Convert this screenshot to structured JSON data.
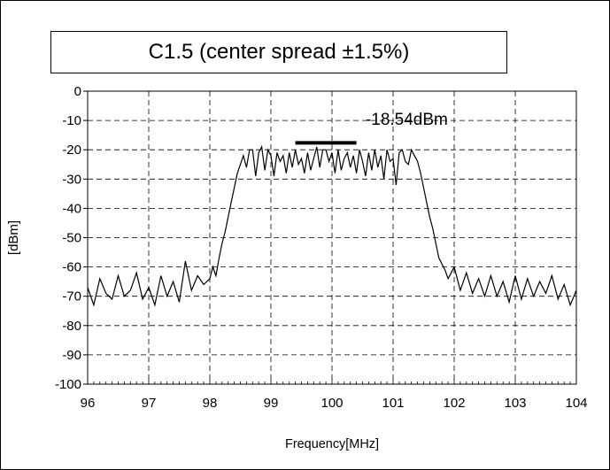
{
  "chart_data": {
    "type": "line",
    "title": "C1.5 (center spread ±1.5%)",
    "xlabel": "Frequency[MHz]",
    "ylabel": "[dBm]",
    "xlim": [
      96,
      104
    ],
    "ylim": [
      -100,
      0
    ],
    "xticks": [
      96,
      97,
      98,
      99,
      100,
      101,
      102,
      103,
      104
    ],
    "yticks": [
      0,
      -10,
      -20,
      -30,
      -40,
      -50,
      -60,
      -70,
      -80,
      -90,
      -100
    ],
    "grid": true,
    "annotation": {
      "text": "-18.54dBm",
      "marker_x_range": [
        99.4,
        100.4
      ],
      "marker_y": -18.54
    },
    "series": [
      {
        "x": [
          96.0,
          96.1,
          96.2,
          96.3,
          96.4,
          96.5,
          96.6,
          96.7,
          96.8,
          96.9,
          97.0,
          97.1,
          97.2,
          97.3,
          97.4,
          97.5,
          97.6,
          97.7,
          97.8,
          97.9,
          98.0,
          98.05,
          98.1,
          98.15,
          98.2,
          98.25,
          98.3,
          98.35,
          98.4,
          98.45,
          98.5,
          98.55,
          98.6,
          98.65,
          98.7,
          98.75,
          98.8,
          98.85,
          98.9,
          98.95,
          99.0,
          99.05,
          99.1,
          99.15,
          99.2,
          99.25,
          99.3,
          99.35,
          99.4,
          99.45,
          99.5,
          99.55,
          99.6,
          99.65,
          99.7,
          99.75,
          99.8,
          99.85,
          99.9,
          99.95,
          100.0,
          100.05,
          100.1,
          100.15,
          100.2,
          100.25,
          100.3,
          100.35,
          100.4,
          100.45,
          100.5,
          100.55,
          100.6,
          100.65,
          100.7,
          100.75,
          100.8,
          100.85,
          100.9,
          100.95,
          101.0,
          101.05,
          101.1,
          101.15,
          101.2,
          101.25,
          101.3,
          101.35,
          101.4,
          101.45,
          101.5,
          101.55,
          101.6,
          101.65,
          101.7,
          101.75,
          101.8,
          101.85,
          101.9,
          101.95,
          102.0,
          102.1,
          102.2,
          102.3,
          102.4,
          102.5,
          102.6,
          102.7,
          102.8,
          102.9,
          103.0,
          103.1,
          103.2,
          103.3,
          103.4,
          103.5,
          103.6,
          103.7,
          103.8,
          103.9,
          104.0
        ],
        "y": [
          -67,
          -73,
          -64,
          -69,
          -71,
          -63,
          -70,
          -68,
          -62,
          -71,
          -67,
          -73,
          -63,
          -70,
          -65,
          -72,
          -58,
          -68,
          -63,
          -66,
          -64,
          -60,
          -63,
          -57,
          -52,
          -48,
          -43,
          -38,
          -33,
          -28,
          -25,
          -22,
          -26,
          -20,
          -20,
          -29,
          -21,
          -19,
          -27,
          -20,
          -22,
          -29,
          -21,
          -24,
          -22,
          -28,
          -21,
          -26,
          -20,
          -25,
          -23,
          -28,
          -21,
          -27,
          -23,
          -19,
          -26,
          -20,
          -20,
          -24,
          -21,
          -28,
          -20,
          -27,
          -23,
          -21,
          -26,
          -22,
          -28,
          -20,
          -24,
          -29,
          -21,
          -27,
          -20,
          -26,
          -22,
          -30,
          -20,
          -24,
          -23,
          -32,
          -21,
          -20,
          -24,
          -25,
          -20,
          -22,
          -24,
          -28,
          -33,
          -38,
          -43,
          -47,
          -52,
          -57,
          -59,
          -61,
          -64,
          -62,
          -60,
          -68,
          -62,
          -69,
          -64,
          -70,
          -63,
          -70,
          -65,
          -72,
          -63,
          -71,
          -64,
          -70,
          -65,
          -69,
          -63,
          -71,
          -66,
          -73,
          -68
        ]
      }
    ]
  }
}
